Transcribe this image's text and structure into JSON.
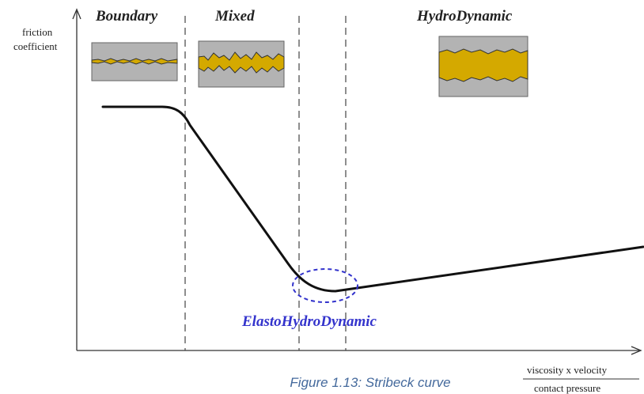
{
  "figure": {
    "regimes": {
      "boundary": "Boundary",
      "mixed": "Mixed",
      "hydrodynamic": "HydroDynamic"
    },
    "elastohydrodynamic_label": "ElastoHydroDynamic",
    "y_axis_label_line1": "friction",
    "y_axis_label_line2": "coefficient",
    "x_axis_numerator": "viscosity x velocity",
    "x_axis_denominator": "contact pressure",
    "caption": "Figure 1.13: Stribeck curve",
    "colors": {
      "lubricant": "#d4a900",
      "surface": "#b3b3b3",
      "ehd": "#3333cc",
      "caption": "#44699c",
      "curve": "#111111"
    }
  }
}
